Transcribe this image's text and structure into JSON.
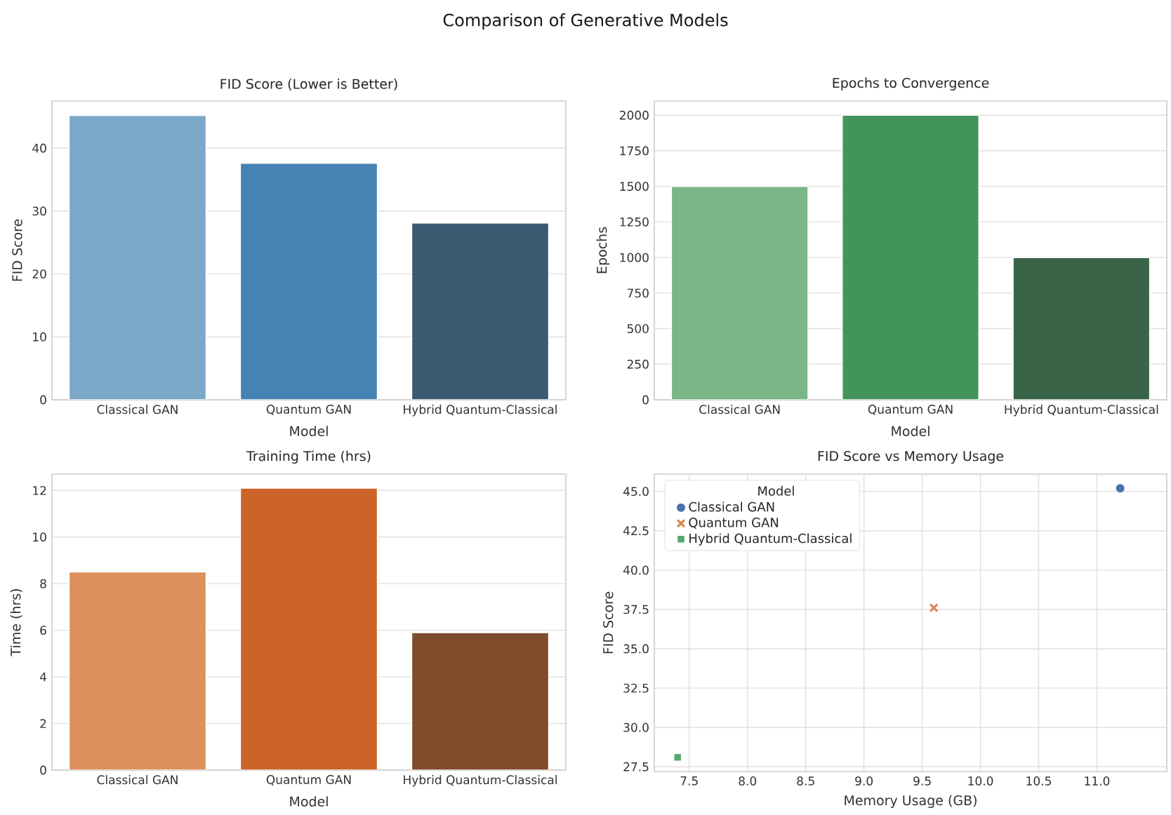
{
  "chart_data": [
    {
      "type": "other",
      "title": "Comparison of Generative Models"
    },
    {
      "type": "bar",
      "title": "FID Score (Lower is Better)",
      "xlabel": "Model",
      "ylabel": "FID Score",
      "categories": [
        "Classical GAN",
        "Quantum GAN",
        "Hybrid Quantum-Classical"
      ],
      "values": [
        45.2,
        37.6,
        28.1
      ],
      "colors": [
        "#7ba7c9",
        "#4682b4",
        "#3a5a72"
      ],
      "ylim": [
        0,
        47.5
      ],
      "yticks": [
        0,
        10,
        20,
        30,
        40
      ],
      "grid": "y"
    },
    {
      "type": "bar",
      "title": "Epochs to Convergence",
      "xlabel": "Model",
      "ylabel": "Epochs",
      "categories": [
        "Classical GAN",
        "Quantum GAN",
        "Hybrid Quantum-Classical"
      ],
      "values": [
        1500,
        2000,
        1000
      ],
      "colors": [
        "#7bb686",
        "#43945a",
        "#3a6447"
      ],
      "ylim": [
        0,
        2100
      ],
      "yticks": [
        0,
        250,
        500,
        750,
        1000,
        1250,
        1500,
        1750,
        2000
      ],
      "grid": "y"
    },
    {
      "type": "bar",
      "title": "Training Time (hrs)",
      "xlabel": "Model",
      "ylabel": "Time (hrs)",
      "categories": [
        "Classical GAN",
        "Quantum GAN",
        "Hybrid Quantum-Classical"
      ],
      "values": [
        8.5,
        12.1,
        5.9
      ],
      "colors": [
        "#dd8f5c",
        "#cc6429",
        "#7f4c2c"
      ],
      "ylim": [
        0,
        12.7
      ],
      "yticks": [
        0,
        2,
        4,
        6,
        8,
        10,
        12
      ],
      "grid": "y"
    },
    {
      "type": "scatter",
      "title": "FID Score vs Memory Usage",
      "xlabel": "Memory Usage (GB)",
      "ylabel": "FID Score",
      "legend_title": "Model",
      "legend": "top left",
      "grid": true,
      "series": [
        {
          "name": "Classical GAN",
          "color": "#4c72b0",
          "marker": "circle",
          "x": [
            11.2
          ],
          "values": [
            45.2
          ]
        },
        {
          "name": "Quantum GAN",
          "color": "#dd8452",
          "marker": "cross",
          "x": [
            9.6
          ],
          "values": [
            37.6
          ]
        },
        {
          "name": "Hybrid Quantum-Classical",
          "color": "#55a868",
          "marker": "square",
          "x": [
            7.4
          ],
          "values": [
            28.1
          ]
        }
      ],
      "xlim": [
        7.2,
        11.6
      ],
      "xticks": [
        {
          "value": 7.5,
          "label": "7.5"
        },
        {
          "value": 8,
          "label": "8.0"
        },
        {
          "value": 8.5,
          "label": "8.5"
        },
        {
          "value": 9,
          "label": "9.0"
        },
        {
          "value": 9.5,
          "label": "9.5"
        },
        {
          "value": 10,
          "label": "10.0"
        },
        {
          "value": 10.5,
          "label": "10.5"
        },
        {
          "value": 11,
          "label": "11.0"
        }
      ],
      "ylim": [
        27.2,
        46.1
      ],
      "yticks": [
        {
          "value": 27.5,
          "label": "27.5"
        },
        {
          "value": 30,
          "label": "30.0"
        },
        {
          "value": 32.5,
          "label": "32.5"
        },
        {
          "value": 35,
          "label": "35.0"
        },
        {
          "value": 37.5,
          "label": "37.5"
        },
        {
          "value": 40,
          "label": "40.0"
        },
        {
          "value": 42.5,
          "label": "42.5"
        },
        {
          "value": 45,
          "label": "45.0"
        }
      ]
    }
  ]
}
